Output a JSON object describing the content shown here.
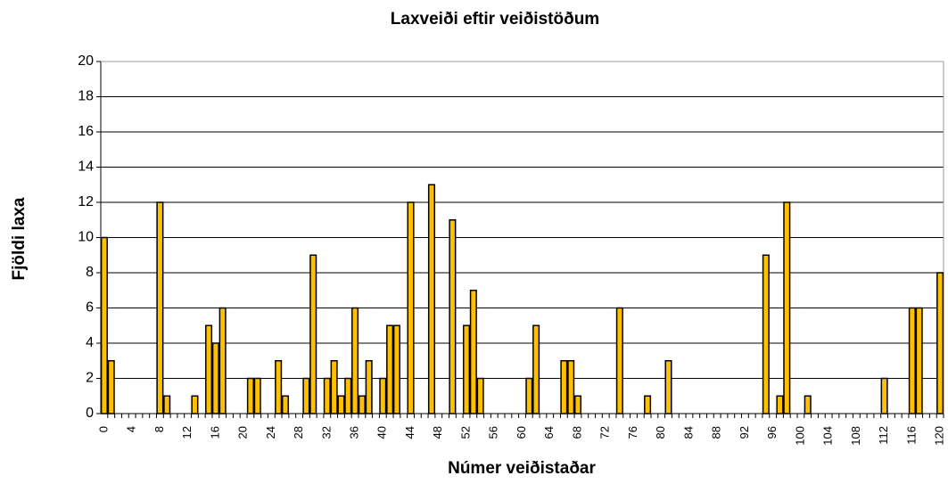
{
  "chart_data": {
    "type": "bar",
    "title": "Laxveiði eftir veiðistöðum",
    "x_label": "Númer veiðistaðar",
    "y_label": "Fjöldi laxa",
    "categories": [
      0,
      null,
      null,
      null,
      4,
      null,
      null,
      null,
      8,
      null,
      null,
      null,
      12,
      null,
      null,
      null,
      16,
      null,
      null,
      null,
      20,
      null,
      null,
      null,
      24,
      null,
      null,
      null,
      28,
      null,
      null,
      null,
      32,
      null,
      null,
      null,
      36,
      null,
      null,
      null,
      40,
      null,
      null,
      null,
      44,
      null,
      null,
      null,
      48,
      null,
      null,
      null,
      52,
      null,
      null,
      null,
      56,
      null,
      null,
      null,
      60,
      null,
      null,
      null,
      64,
      null,
      null,
      null,
      68,
      null,
      null,
      null,
      72,
      null,
      null,
      null,
      76,
      null,
      null,
      null,
      80,
      null,
      null,
      null,
      84,
      null,
      null,
      null,
      88,
      null,
      null,
      null,
      92,
      null,
      null,
      null,
      96,
      null,
      null,
      null,
      100,
      null,
      null,
      null,
      104,
      null,
      null,
      null,
      108,
      null,
      null,
      null,
      112,
      null,
      null,
      null,
      116,
      null,
      null,
      null,
      120
    ],
    "values": [
      10,
      3,
      0,
      0,
      0,
      0,
      0,
      0,
      12,
      1,
      0,
      0,
      0,
      1,
      0,
      5,
      4,
      6,
      0,
      0,
      0,
      2,
      2,
      0,
      0,
      3,
      1,
      0,
      0,
      2,
      9,
      0,
      2,
      3,
      1,
      2,
      6,
      1,
      3,
      0,
      2,
      5,
      5,
      0,
      12,
      0,
      0,
      13,
      0,
      0,
      11,
      0,
      5,
      7,
      2,
      0,
      0,
      0,
      0,
      0,
      0,
      2,
      5,
      0,
      0,
      0,
      3,
      3,
      1,
      0,
      0,
      0,
      0,
      0,
      6,
      0,
      0,
      0,
      1,
      0,
      0,
      3,
      0,
      0,
      0,
      0,
      0,
      0,
      0,
      0,
      0,
      0,
      0,
      0,
      0,
      9,
      0,
      1,
      12,
      0,
      0,
      1,
      0,
      0,
      0,
      0,
      0,
      0,
      0,
      0,
      0,
      0,
      2,
      0,
      0,
      0,
      6,
      6,
      0,
      0,
      8
    ],
    "color": "#ffc000",
    "ylim": [
      0,
      20
    ],
    "yticks": [
      0,
      2,
      4,
      6,
      8,
      10,
      12,
      14,
      16,
      18,
      20
    ],
    "grid": true
  }
}
